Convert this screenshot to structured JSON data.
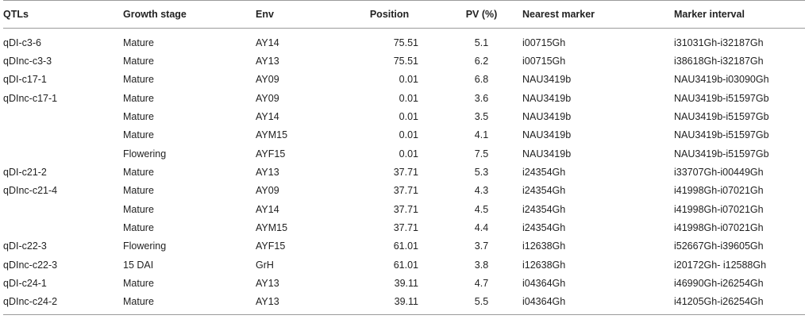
{
  "table": {
    "headers": [
      "QTLs",
      "Growth stage",
      "Env",
      "Position",
      "PV (%)",
      "Nearest marker",
      "Marker interval"
    ],
    "rows": [
      [
        "qDI-c3-6",
        "Mature",
        "AY14",
        "75.51",
        "5.1",
        "i00715Gh",
        "i31031Gh-i32187Gh"
      ],
      [
        "qDInc-c3-3",
        "Mature",
        "AY13",
        "75.51",
        "6.2",
        "i00715Gh",
        "i38618Gh-i32187Gh"
      ],
      [
        "qDI-c17-1",
        "Mature",
        "AY09",
        "0.01",
        "6.8",
        "NAU3419b",
        "NAU3419b-i03090Gh"
      ],
      [
        "qDInc-c17-1",
        "Mature",
        "AY09",
        "0.01",
        "3.6",
        "NAU3419b",
        "NAU3419b-i51597Gb"
      ],
      [
        "",
        "Mature",
        "AY14",
        "0.01",
        "3.5",
        "NAU3419b",
        "NAU3419b-i51597Gb"
      ],
      [
        "",
        "Mature",
        "AYM15",
        "0.01",
        "4.1",
        "NAU3419b",
        "NAU3419b-i51597Gb"
      ],
      [
        "",
        "Flowering",
        "AYF15",
        "0.01",
        "7.5",
        "NAU3419b",
        "NAU3419b-i51597Gb"
      ],
      [
        "qDI-c21-2",
        "Mature",
        "AY13",
        "37.71",
        "5.3",
        "i24354Gh",
        "i33707Gh-i00449Gh"
      ],
      [
        "qDInc-c21-4",
        "Mature",
        "AY09",
        "37.71",
        "4.3",
        "i24354Gh",
        "i41998Gh-i07021Gh"
      ],
      [
        "",
        "Mature",
        "AY14",
        "37.71",
        "4.5",
        "i24354Gh",
        "i41998Gh-i07021Gh"
      ],
      [
        "",
        "Mature",
        "AYM15",
        "37.71",
        "4.4",
        "i24354Gh",
        "i41998Gh-i07021Gh"
      ],
      [
        "qDI-c22-3",
        "Flowering",
        "AYF15",
        "61.01",
        "3.7",
        "i12638Gh",
        "i52667Gh-i39605Gh"
      ],
      [
        "qDInc-c22-3",
        "15 DAI",
        "GrH",
        "61.01",
        "3.8",
        "i12638Gh",
        "i20172Gh- i12588Gh"
      ],
      [
        "qDI-c24-1",
        "Mature",
        "AY13",
        "39.11",
        "4.7",
        "i04364Gh",
        "i46990Gh-i26254Gh"
      ],
      [
        "qDInc-c24-2",
        "Mature",
        "AY13",
        "39.11",
        "5.5",
        "i04364Gh",
        "i41205Gh-i26254Gh"
      ]
    ]
  }
}
